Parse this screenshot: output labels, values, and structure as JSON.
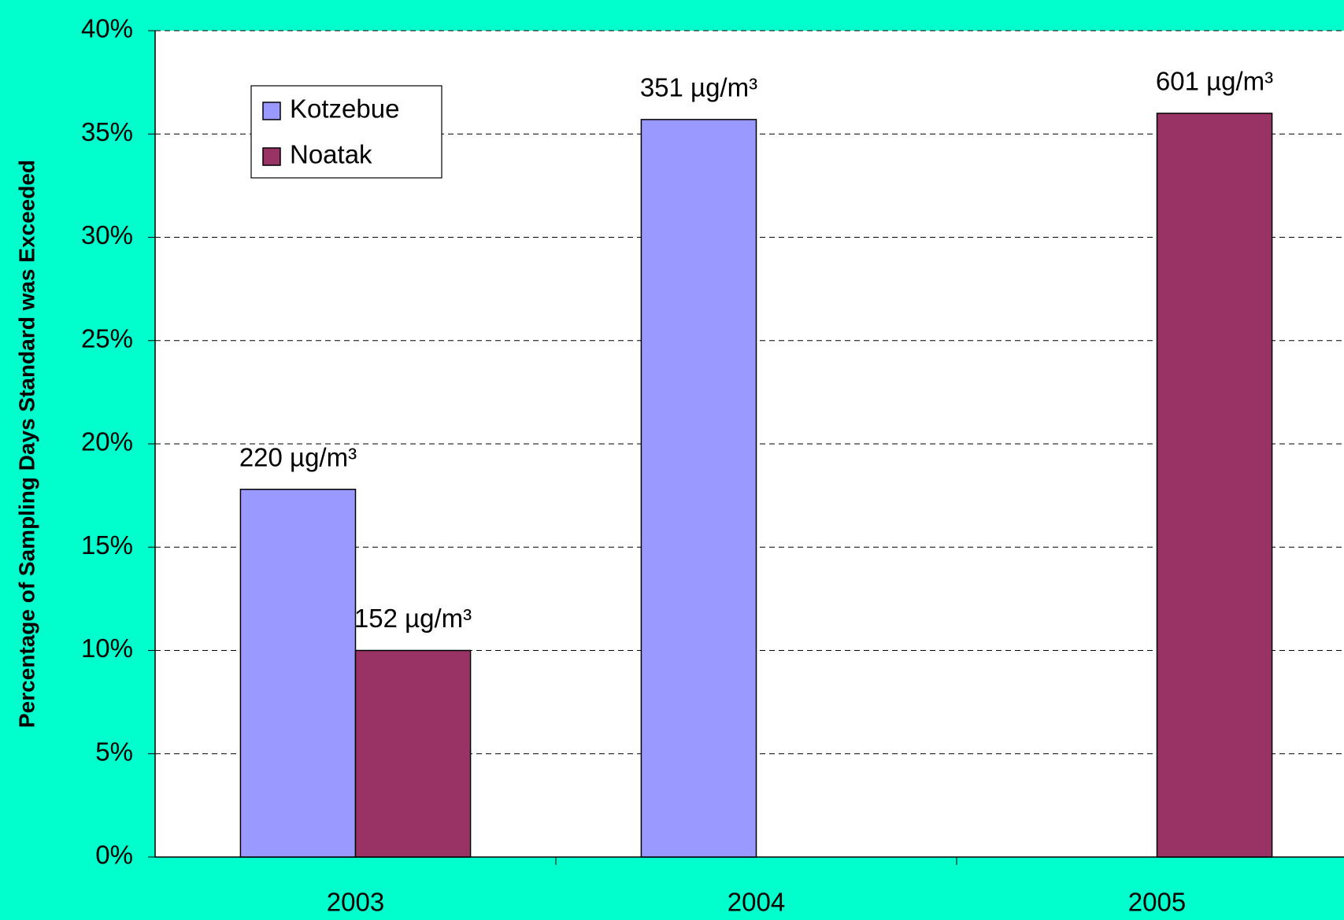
{
  "chart_data": {
    "type": "bar",
    "y_axis_label": "Percentage of Sampling Days Standard was Exceeded",
    "categories": [
      "2003",
      "2004",
      "2005"
    ],
    "series": [
      {
        "name": "Kotzebue",
        "color": "#9999ff",
        "values": [
          17.8,
          35.7,
          null
        ],
        "annotations": [
          "220 µg/m³",
          "351 µg/m³",
          null
        ]
      },
      {
        "name": "Noatak",
        "color": "#993366",
        "values": [
          10,
          null,
          36
        ],
        "annotations": [
          "152 µg/m³",
          null,
          "601 µg/m³"
        ]
      }
    ],
    "ylim": [
      0,
      40
    ],
    "yticks": [
      {
        "value": 0,
        "label": "0%"
      },
      {
        "value": 5,
        "label": "5%"
      },
      {
        "value": 10,
        "label": "10%"
      },
      {
        "value": 15,
        "label": "15%"
      },
      {
        "value": 20,
        "label": "20%"
      },
      {
        "value": 25,
        "label": "25%"
      },
      {
        "value": 30,
        "label": "30%"
      },
      {
        "value": 35,
        "label": "35%"
      },
      {
        "value": 40,
        "label": "40%"
      }
    ],
    "grid": true,
    "legend": "upper left"
  }
}
